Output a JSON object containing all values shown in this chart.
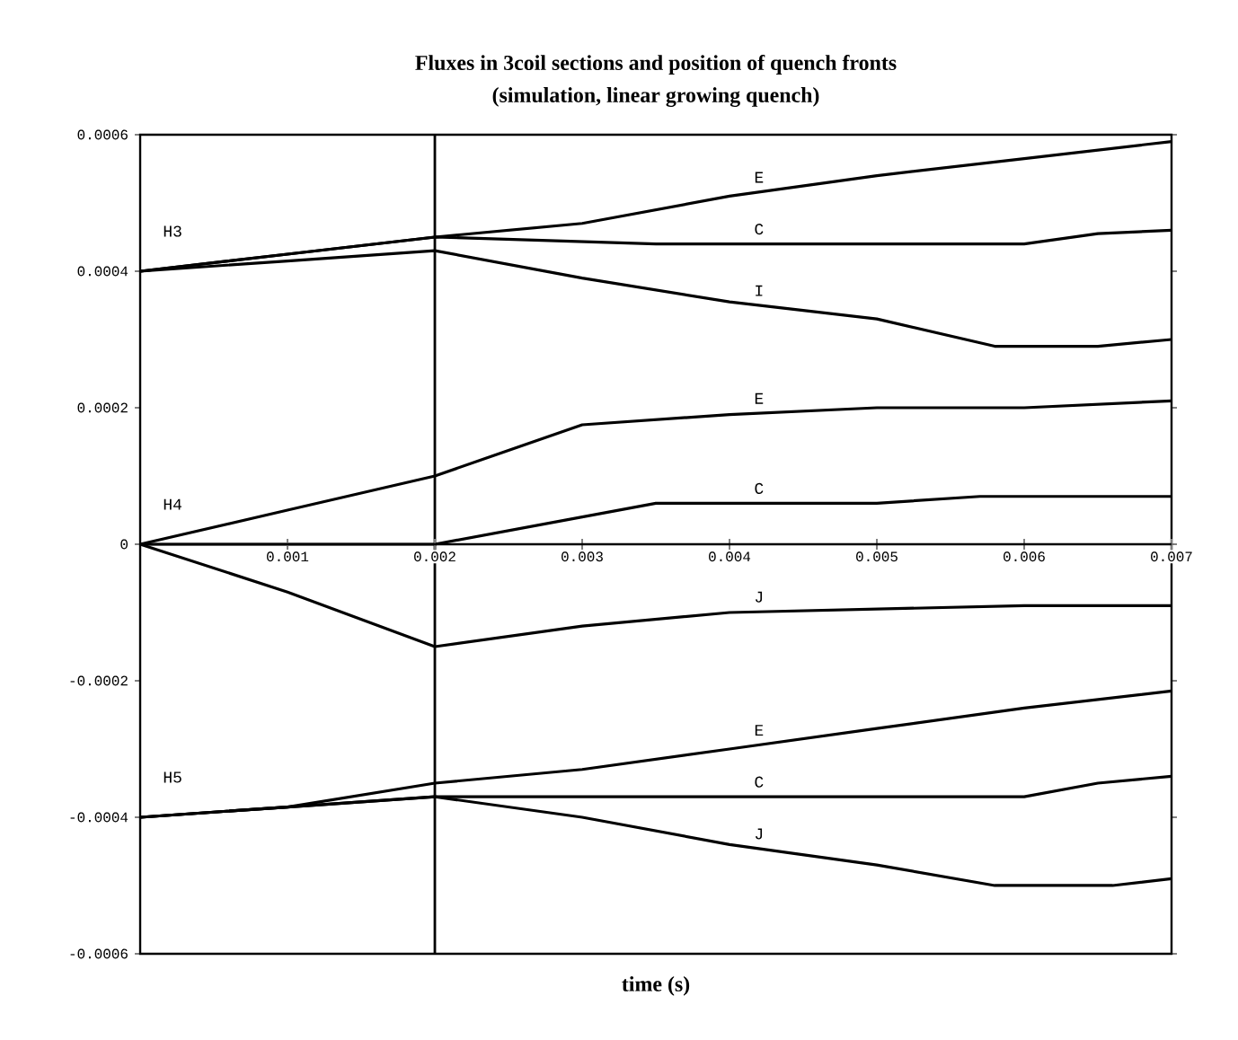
{
  "chart_data": {
    "type": "line",
    "title": "Fluxes in 3coil sections and position of quench fronts",
    "subtitle": "(simulation, linear growing quench)",
    "xlabel": "time (s)",
    "xlim": [
      0,
      0.007
    ],
    "ylim": [
      -0.0006,
      0.0006
    ],
    "xticks": [
      0.001,
      0.002,
      0.003,
      0.004,
      0.005,
      0.006,
      0.007
    ],
    "yticks": [
      -0.0006,
      -0.0004,
      -0.0002,
      0,
      0.0002,
      0.0004,
      0.0006
    ],
    "grid": false,
    "marker": "none",
    "line_style": "solid",
    "ref_lines": [
      {
        "axis": "x",
        "value": 0.002,
        "color": "#000000"
      }
    ],
    "series": [
      {
        "name": "E",
        "color": "#000000",
        "x": [
          0,
          0.001,
          0.002,
          0.003,
          0.004,
          0.005,
          0.006,
          0.007
        ],
        "values": [
          0.0004,
          0.000425,
          0.00045,
          0.00047,
          0.00051,
          0.00054,
          0.000565,
          0.00059
        ]
      },
      {
        "name": "C",
        "color": "#000000",
        "x": [
          0,
          0.001,
          0.002,
          0.0035,
          0.006,
          0.0065,
          0.007
        ],
        "values": [
          0.0004,
          0.000425,
          0.00045,
          0.00044,
          0.00044,
          0.000455,
          0.00046
        ]
      },
      {
        "name": "I",
        "color": "#000000",
        "x": [
          0,
          0.001,
          0.002,
          0.003,
          0.004,
          0.005,
          0.0058,
          0.0065,
          0.007
        ],
        "values": [
          0.0004,
          0.000415,
          0.00043,
          0.00039,
          0.000355,
          0.00033,
          0.00029,
          0.00029,
          0.0003
        ]
      },
      {
        "name": "E",
        "color": "#000000",
        "x": [
          0,
          0.001,
          0.002,
          0.003,
          0.004,
          0.005,
          0.006,
          0.007
        ],
        "values": [
          0,
          5e-05,
          0.0001,
          0.000175,
          0.00019,
          0.0002,
          0.0002,
          0.00021
        ]
      },
      {
        "name": "C",
        "color": "#000000",
        "x": [
          0,
          0.002,
          0.003,
          0.0035,
          0.005,
          0.0057,
          0.007
        ],
        "values": [
          0,
          0,
          4e-05,
          6e-05,
          6e-05,
          7e-05,
          7e-05
        ]
      },
      {
        "name": "J",
        "color": "#000000",
        "x": [
          0,
          0.001,
          0.002,
          0.003,
          0.004,
          0.006,
          0.007
        ],
        "values": [
          0,
          -7e-05,
          -0.00015,
          -0.00012,
          -0.0001,
          -9e-05,
          -9e-05
        ]
      },
      {
        "name": "E",
        "color": "#000000",
        "x": [
          0,
          0.001,
          0.002,
          0.003,
          0.004,
          0.005,
          0.006,
          0.007
        ],
        "values": [
          -0.0004,
          -0.000385,
          -0.00035,
          -0.00033,
          -0.0003,
          -0.00027,
          -0.00024,
          -0.000215
        ]
      },
      {
        "name": "C",
        "color": "#000000",
        "x": [
          0,
          0.001,
          0.002,
          0.004,
          0.006,
          0.0065,
          0.007
        ],
        "values": [
          -0.0004,
          -0.000385,
          -0.00037,
          -0.00037,
          -0.00037,
          -0.00035,
          -0.00034
        ]
      },
      {
        "name": "J",
        "color": "#000000",
        "x": [
          0,
          0.001,
          0.002,
          0.003,
          0.004,
          0.005,
          0.0058,
          0.0066,
          0.007
        ],
        "values": [
          -0.0004,
          -0.000385,
          -0.00037,
          -0.0004,
          -0.00044,
          -0.00047,
          -0.0005,
          -0.0005,
          -0.00049
        ]
      }
    ],
    "annotations": [
      "H3",
      "H4",
      "H5"
    ]
  }
}
